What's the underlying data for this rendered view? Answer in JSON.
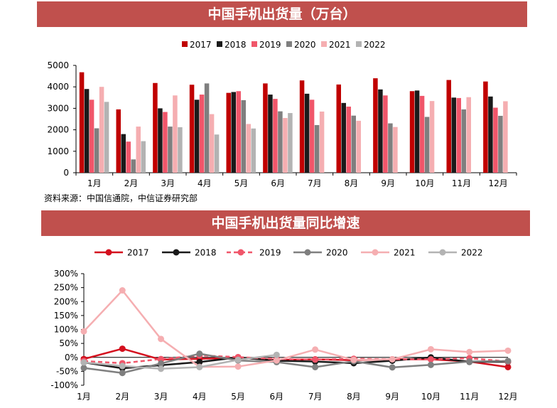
{
  "chart_data": [
    {
      "type": "bar",
      "title": "中国手机出货量（万台）",
      "categories": [
        "1月",
        "2月",
        "3月",
        "4月",
        "5月",
        "6月",
        "7月",
        "8月",
        "9月",
        "10月",
        "11月",
        "12月"
      ],
      "series": [
        {
          "name": "2017",
          "color": "#c00000",
          "values": [
            4680,
            2950,
            4180,
            4100,
            3720,
            4160,
            4300,
            4110,
            4400,
            3800,
            4320,
            4250
          ]
        },
        {
          "name": "2018",
          "color": "#1a1a1a",
          "values": [
            3900,
            1800,
            3000,
            3400,
            3760,
            3640,
            3680,
            3250,
            3880,
            3830,
            3500,
            3550
          ]
        },
        {
          "name": "2019",
          "color": "#f0566a",
          "values": [
            3400,
            1450,
            2830,
            3640,
            3800,
            3440,
            3400,
            3080,
            3600,
            3580,
            3480,
            3030
          ]
        },
        {
          "name": "2020",
          "color": "#7f7f7f",
          "values": [
            2070,
            620,
            2150,
            4160,
            3380,
            2860,
            2220,
            2660,
            2300,
            2600,
            2950,
            2650
          ]
        },
        {
          "name": "2021",
          "color": "#f5aeb1",
          "values": [
            4000,
            2150,
            3600,
            2730,
            2270,
            2550,
            2850,
            2420,
            2130,
            3340,
            3520,
            3330
          ]
        },
        {
          "name": "2022",
          "color": "#b3b3b3",
          "values": [
            3300,
            1470,
            2120,
            1780,
            2060,
            2780,
            null,
            null,
            null,
            null,
            null,
            null
          ]
        }
      ],
      "yticks": [
        "0",
        "1000",
        "2000",
        "3000",
        "4000",
        "5000"
      ],
      "ylim": [
        0,
        5000
      ],
      "legend": "top",
      "source": "资料来源：中国信通院，中信证券研究部"
    },
    {
      "type": "line",
      "title": "中国手机出货量同比增速",
      "categories": [
        "1月",
        "2月",
        "3月",
        "4月",
        "5月",
        "6月",
        "7月",
        "8月",
        "9月",
        "10月",
        "11月",
        "12月"
      ],
      "series": [
        {
          "name": "2017",
          "color": "#d4101e",
          "dashed": false,
          "values": [
            -6,
            31,
            -8,
            -5,
            -2,
            -9,
            -7,
            -10,
            -7,
            -7,
            -15,
            -35
          ]
        },
        {
          "name": "2018",
          "color": "#1a1a1a",
          "dashed": false,
          "values": [
            -18,
            -39,
            -28,
            -17,
            0,
            -12,
            -15,
            -21,
            -12,
            0,
            -16,
            -16
          ]
        },
        {
          "name": "2019",
          "color": "#f0566a",
          "dashed": true,
          "values": [
            -13,
            -21,
            -6,
            7,
            1,
            -6,
            -8,
            -5,
            -7,
            -7,
            -3,
            -15
          ]
        },
        {
          "name": "2020",
          "color": "#7f7f7f",
          "dashed": false,
          "values": [
            -38,
            -56,
            -22,
            13,
            -11,
            -17,
            -35,
            -14,
            -36,
            -27,
            -15,
            -13
          ]
        },
        {
          "name": "2021",
          "color": "#f5aeb1",
          "dashed": false,
          "values": [
            93,
            240,
            66,
            -34,
            -33,
            -11,
            28,
            -9,
            -7,
            29,
            19,
            24
          ]
        },
        {
          "name": "2022",
          "color": "#b3b3b3",
          "dashed": false,
          "values": [
            -18,
            -31,
            -41,
            -35,
            -9,
            9,
            null,
            null,
            null,
            null,
            null,
            null
          ]
        }
      ],
      "yticks": [
        "-100%",
        "-50%",
        "0%",
        "50%",
        "100%",
        "150%",
        "200%",
        "250%",
        "300%"
      ],
      "ylim": [
        -100,
        300
      ],
      "legend": "top"
    }
  ]
}
